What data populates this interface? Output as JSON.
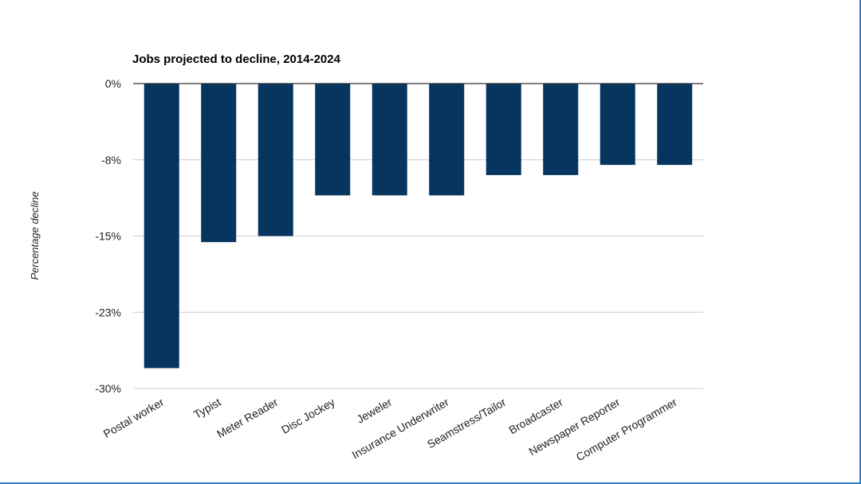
{
  "colors": {
    "bar": "#06355f",
    "gridline": "#cccccc",
    "baseline": "#333333",
    "frame_border": "#2f7fc8"
  },
  "chart_data": {
    "type": "bar",
    "title": "Jobs projected to decline, 2014-2024",
    "xlabel": "",
    "ylabel": "Percentage decline",
    "ylim": [
      -30,
      0
    ],
    "yticks": [
      0,
      -7.5,
      -15,
      -22.5,
      -30
    ],
    "ytick_labels": [
      "0%",
      "-8%",
      "-15%",
      "-23%",
      "-30%"
    ],
    "grid": true,
    "legend": "none",
    "categories": [
      "Postal worker",
      "Typist",
      "Meter Reader",
      "Disc Jockey",
      "Jeweler",
      "Insurance Underwriter",
      "Seamstress/Tailor",
      "Broadcaster",
      "Newspaper Reporter",
      "Computer Programmer"
    ],
    "values": [
      -28,
      -15.6,
      -15,
      -11,
      -11,
      -11,
      -9,
      -9,
      -8,
      -8
    ]
  }
}
